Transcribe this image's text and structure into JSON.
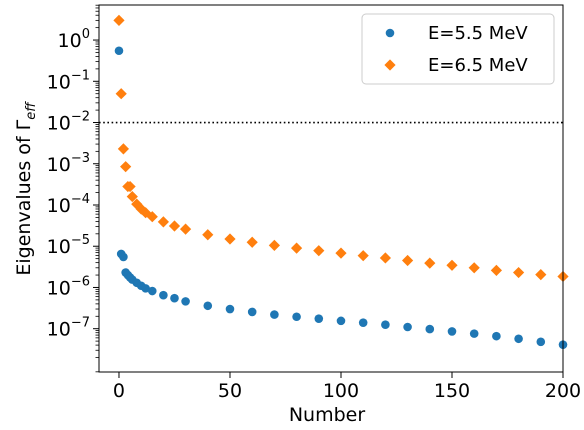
{
  "chart_data": {
    "type": "scatter",
    "title": "",
    "xlabel": "Number",
    "ylabel_prefix": "Eigenvalues of Γ",
    "ylabel_subscript": "eff",
    "xlim": [
      -9,
      200
    ],
    "ylim_log10": [
      -8.05,
      0.85
    ],
    "y_scale": "log",
    "grid": false,
    "legend_position": "top-right",
    "x_ticks": [
      0,
      50,
      100,
      150,
      200
    ],
    "x_tick_labels": [
      "0",
      "50",
      "100",
      "150",
      "200"
    ],
    "y_tick_exponents": [
      0,
      -1,
      -2,
      -3,
      -4,
      -5,
      -6,
      -7
    ],
    "y_tick_labels": [
      {
        "base": "10",
        "exp": "0"
      },
      {
        "base": "10",
        "exp": "−1"
      },
      {
        "base": "10",
        "exp": "−2"
      },
      {
        "base": "10",
        "exp": "−3"
      },
      {
        "base": "10",
        "exp": "−4"
      },
      {
        "base": "10",
        "exp": "−5"
      },
      {
        "base": "10",
        "exp": "−6"
      },
      {
        "base": "10",
        "exp": "−7"
      }
    ],
    "reference_line": {
      "y": 0.01,
      "style": "dotted",
      "color": "#000000"
    },
    "series": [
      {
        "name": "E=5.5 MeV",
        "marker": "circle",
        "color": "#1f77b4",
        "points": [
          [
            0,
            0.55
          ],
          [
            1,
            6.5e-06
          ],
          [
            2,
            5.5e-06
          ],
          [
            3,
            2.3e-06
          ],
          [
            4,
            2e-06
          ],
          [
            5,
            1.75e-06
          ],
          [
            6,
            1.55e-06
          ],
          [
            8,
            1.3e-06
          ],
          [
            10,
            1.1e-06
          ],
          [
            12,
            9.5e-07
          ],
          [
            15,
            8.2e-07
          ],
          [
            20,
            6.5e-07
          ],
          [
            25,
            5.5e-07
          ],
          [
            30,
            4.6e-07
          ],
          [
            40,
            3.6e-07
          ],
          [
            50,
            3e-07
          ],
          [
            60,
            2.55e-07
          ],
          [
            70,
            2.2e-07
          ],
          [
            80,
            1.95e-07
          ],
          [
            90,
            1.75e-07
          ],
          [
            100,
            1.55e-07
          ],
          [
            110,
            1.4e-07
          ],
          [
            120,
            1.25e-07
          ],
          [
            130,
            1.1e-07
          ],
          [
            140,
            9.8e-08
          ],
          [
            150,
            8.6e-08
          ],
          [
            160,
            7.6e-08
          ],
          [
            170,
            6.6e-08
          ],
          [
            180,
            5.7e-08
          ],
          [
            190,
            4.8e-08
          ],
          [
            200,
            4.1e-08
          ]
        ]
      },
      {
        "name": "E=6.5 MeV",
        "marker": "diamond",
        "color": "#ff7f0e",
        "points": [
          [
            0,
            3.0
          ],
          [
            1,
            0.05
          ],
          [
            2,
            0.0023
          ],
          [
            3,
            0.00085
          ],
          [
            4,
            0.00028
          ],
          [
            5,
            0.00028
          ],
          [
            6,
            0.00016
          ],
          [
            8,
            0.000105
          ],
          [
            10,
            8e-05
          ],
          [
            12,
            6.5e-05
          ],
          [
            15,
            5.2e-05
          ],
          [
            20,
            3.9e-05
          ],
          [
            25,
            3.1e-05
          ],
          [
            30,
            2.6e-05
          ],
          [
            40,
            1.9e-05
          ],
          [
            50,
            1.5e-05
          ],
          [
            60,
            1.25e-05
          ],
          [
            70,
            1.05e-05
          ],
          [
            80,
            9e-06
          ],
          [
            90,
            7.8e-06
          ],
          [
            100,
            6.8e-06
          ],
          [
            110,
            5.9e-06
          ],
          [
            120,
            5.2e-06
          ],
          [
            130,
            4.5e-06
          ],
          [
            140,
            3.9e-06
          ],
          [
            150,
            3.45e-06
          ],
          [
            160,
            3e-06
          ],
          [
            170,
            2.6e-06
          ],
          [
            180,
            2.3e-06
          ],
          [
            190,
            2.05e-06
          ],
          [
            200,
            1.85e-06
          ]
        ]
      }
    ]
  }
}
